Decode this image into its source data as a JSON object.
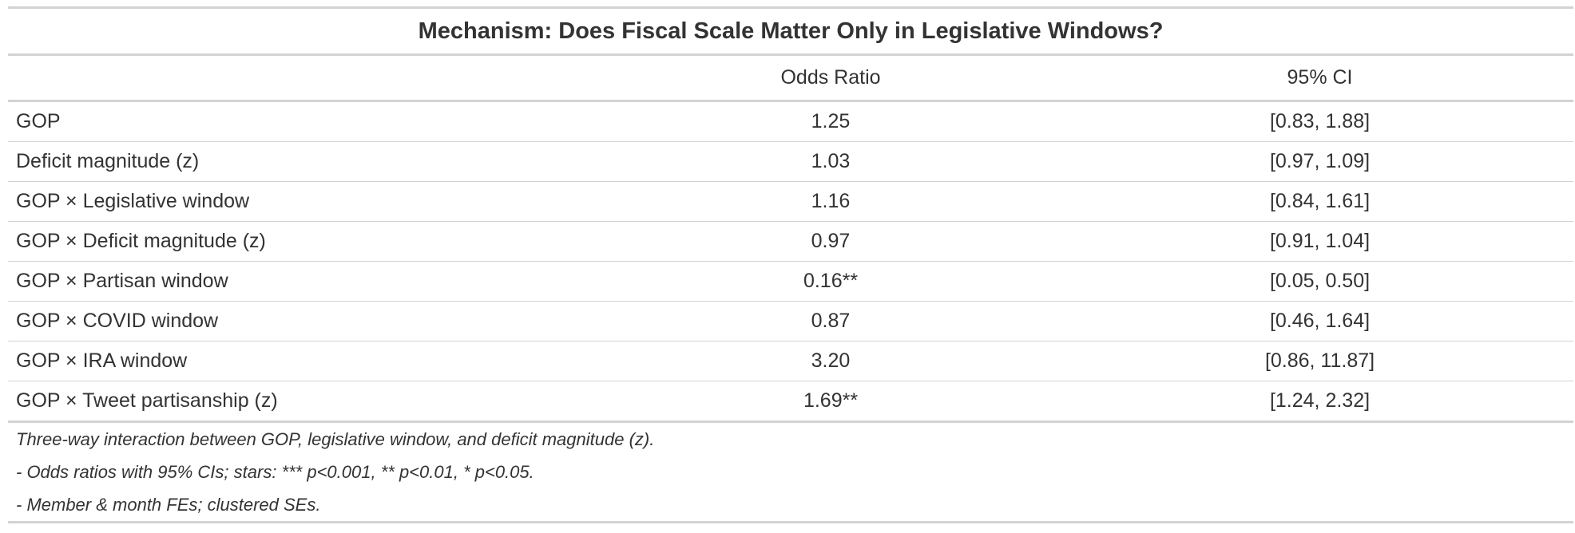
{
  "table": {
    "title": "Mechanism: Does Fiscal Scale Matter Only in Legislative Windows?",
    "headers": [
      "",
      "Odds Ratio",
      "95% CI"
    ],
    "rows": [
      {
        "term": "GOP",
        "odds_ratio": "1.25",
        "ci": "[0.83, 1.88]"
      },
      {
        "term": "Deficit magnitude (z)",
        "odds_ratio": "1.03",
        "ci": "[0.97, 1.09]"
      },
      {
        "term": "GOP × Legislative window",
        "odds_ratio": "1.16",
        "ci": "[0.84, 1.61]"
      },
      {
        "term": "GOP × Deficit magnitude (z)",
        "odds_ratio": "0.97",
        "ci": "[0.91, 1.04]"
      },
      {
        "term": "GOP × Partisan window",
        "odds_ratio": "0.16**",
        "ci": "[0.05, 0.50]"
      },
      {
        "term": "GOP × COVID window",
        "odds_ratio": "0.87",
        "ci": "[0.46, 1.64]"
      },
      {
        "term": "GOP × IRA window",
        "odds_ratio": "3.20",
        "ci": "[0.86, 11.87]"
      },
      {
        "term": "GOP × Tweet partisanship (z)",
        "odds_ratio": "1.69**",
        "ci": "[1.24, 2.32]"
      }
    ],
    "notes": [
      "Three-way interaction between GOP, legislative window, and deficit magnitude (z).",
      "- Odds ratios with 95% CIs; stars: *** p<0.001, ** p<0.01, * p<0.05.",
      "- Member & month FEs; clustered SEs."
    ]
  }
}
